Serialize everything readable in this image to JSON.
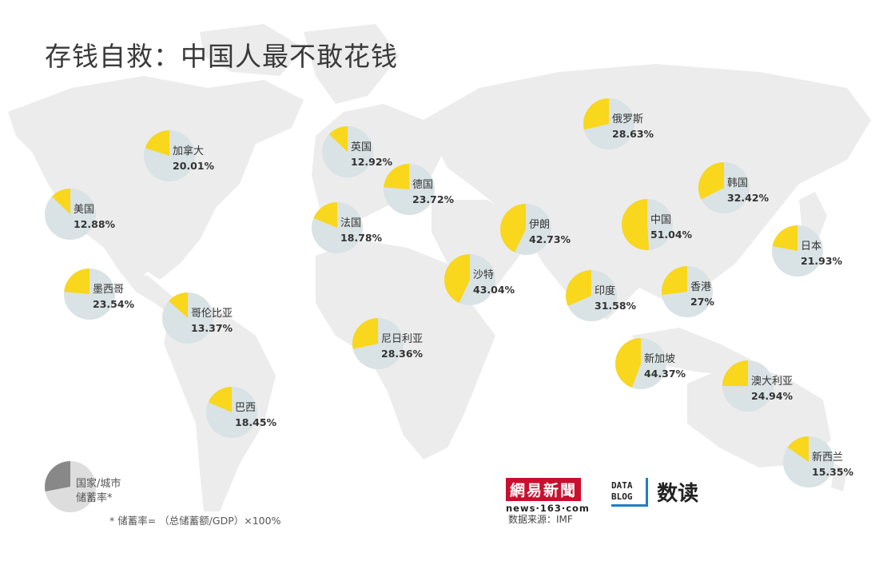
{
  "title": "存钱自救：中国人最不敢花钱",
  "chart_data": {
    "type": "pie",
    "description_metric": "国家/城市储蓄率",
    "colors": {
      "saving": "#f8d71c",
      "rest": "#d9e2e4",
      "map_land": "#ececec",
      "legend_saving": "#888888",
      "legend_rest": "#dddddd"
    },
    "slices": [
      {
        "name": "加拿大",
        "value": 20.01,
        "display": "20.01%"
      },
      {
        "name": "美国",
        "value": 12.88,
        "display": "12.88%"
      },
      {
        "name": "墨西哥",
        "value": 23.54,
        "display": "23.54%"
      },
      {
        "name": "哥伦比亚",
        "value": 13.37,
        "display": "13.37%"
      },
      {
        "name": "巴西",
        "value": 18.45,
        "display": "18.45%"
      },
      {
        "name": "英国",
        "value": 12.92,
        "display": "12.92%"
      },
      {
        "name": "德国",
        "value": 23.72,
        "display": "23.72%"
      },
      {
        "name": "法国",
        "value": 18.78,
        "display": "18.78%"
      },
      {
        "name": "尼日利亚",
        "value": 28.36,
        "display": "28.36%"
      },
      {
        "name": "沙特",
        "value": 43.04,
        "display": "43.04%"
      },
      {
        "name": "伊朗",
        "value": 42.73,
        "display": "42.73%"
      },
      {
        "name": "俄罗斯",
        "value": 28.63,
        "display": "28.63%"
      },
      {
        "name": "印度",
        "value": 31.58,
        "display": "31.58%"
      },
      {
        "name": "新加坡",
        "value": 44.37,
        "display": "44.37%"
      },
      {
        "name": "中国",
        "value": 51.04,
        "display": "51.04%"
      },
      {
        "name": "香港",
        "value": 27,
        "display": "27%"
      },
      {
        "name": "韩国",
        "value": 32.42,
        "display": "32.42%"
      },
      {
        "name": "日本",
        "value": 21.93,
        "display": "21.93%"
      },
      {
        "name": "澳大利亚",
        "value": 24.94,
        "display": "24.94%"
      },
      {
        "name": "新西兰",
        "value": 15.35,
        "display": "15.35%"
      }
    ]
  },
  "legend": {
    "line1": "国家/城市",
    "line2": "储蓄率*"
  },
  "footnote": "* 储蓄率= （总储蓄额/GDP）×100%",
  "branding": {
    "netease_cn": "網易新聞",
    "netease_url": "news·163·com",
    "source": "数据来源：IMF",
    "datablog_line1": "DATA",
    "datablog_line2": "BLOG",
    "datablog_cn": "数读"
  }
}
